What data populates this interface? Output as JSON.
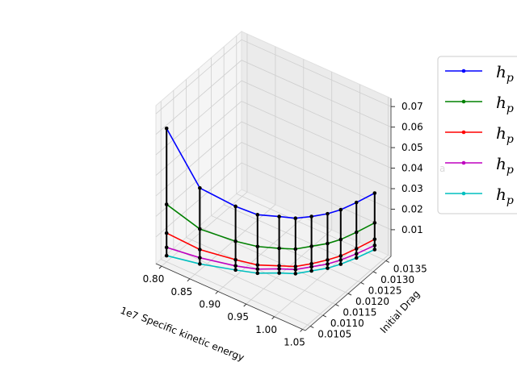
{
  "chart_data": {
    "type": "line",
    "projection": "3d",
    "xlabel": "Specific kinetic energy",
    "x_offset_text": "1e7",
    "ylabel": "Initial Drag",
    "zlabel": "a",
    "xticks": [
      "0.80",
      "0.85",
      "0.90",
      "0.95",
      "1.00",
      "1.05"
    ],
    "yticks": [
      "0.0105",
      "0.0110",
      "0.0115",
      "0.0120",
      "0.0125",
      "0.0130",
      "0.0135"
    ],
    "zticks": [
      "0.01",
      "0.02",
      "0.03",
      "0.04",
      "0.05",
      "0.06",
      "0.07"
    ],
    "x": [
      8000000.0,
      8500000.0,
      9000000.0,
      9300000.0,
      9550000.0,
      9750000.0,
      9900000.0,
      10050000.0,
      10150000.0,
      10250000.0,
      10350000.0
    ],
    "y": [
      0.0105,
      0.0107,
      0.011,
      0.0112,
      0.0115,
      0.0117,
      0.012,
      0.0123,
      0.0126,
      0.013,
      0.0135
    ],
    "legend_position": "right",
    "grid": true,
    "series": [
      {
        "label": "h",
        "subscript": "p",
        "color": "#0000ff",
        "z": [
          0.062,
          0.037,
          0.031,
          0.0285,
          0.0275,
          0.027,
          0.0265,
          0.0265,
          0.0265,
          0.027,
          0.0275
        ]
      },
      {
        "label": "h",
        "subscript": "p",
        "color": "#008000",
        "z": [
          0.025,
          0.017,
          0.014,
          0.013,
          0.012,
          0.012,
          0.012,
          0.012,
          0.012,
          0.0125,
          0.013
        ]
      },
      {
        "label": "h",
        "subscript": "p",
        "color": "#ff0000",
        "z": [
          0.011,
          0.007,
          0.005,
          0.004,
          0.0035,
          0.0035,
          0.0035,
          0.004,
          0.004,
          0.0045,
          0.005
        ]
      },
      {
        "label": "h",
        "subscript": "p",
        "color": "#bf00bf",
        "z": [
          0.004,
          0.003,
          0.002,
          0.002,
          0.002,
          0.002,
          0.002,
          0.002,
          0.002,
          0.002,
          0.002
        ]
      },
      {
        "label": "h",
        "subscript": "p",
        "color": "#00bfbf",
        "z": [
          0.0,
          0.0,
          0.0,
          0.0,
          0.0,
          0.0,
          0.0,
          0.0,
          0.0,
          0.0,
          0.0
        ]
      }
    ],
    "connector_color": "#000000"
  }
}
